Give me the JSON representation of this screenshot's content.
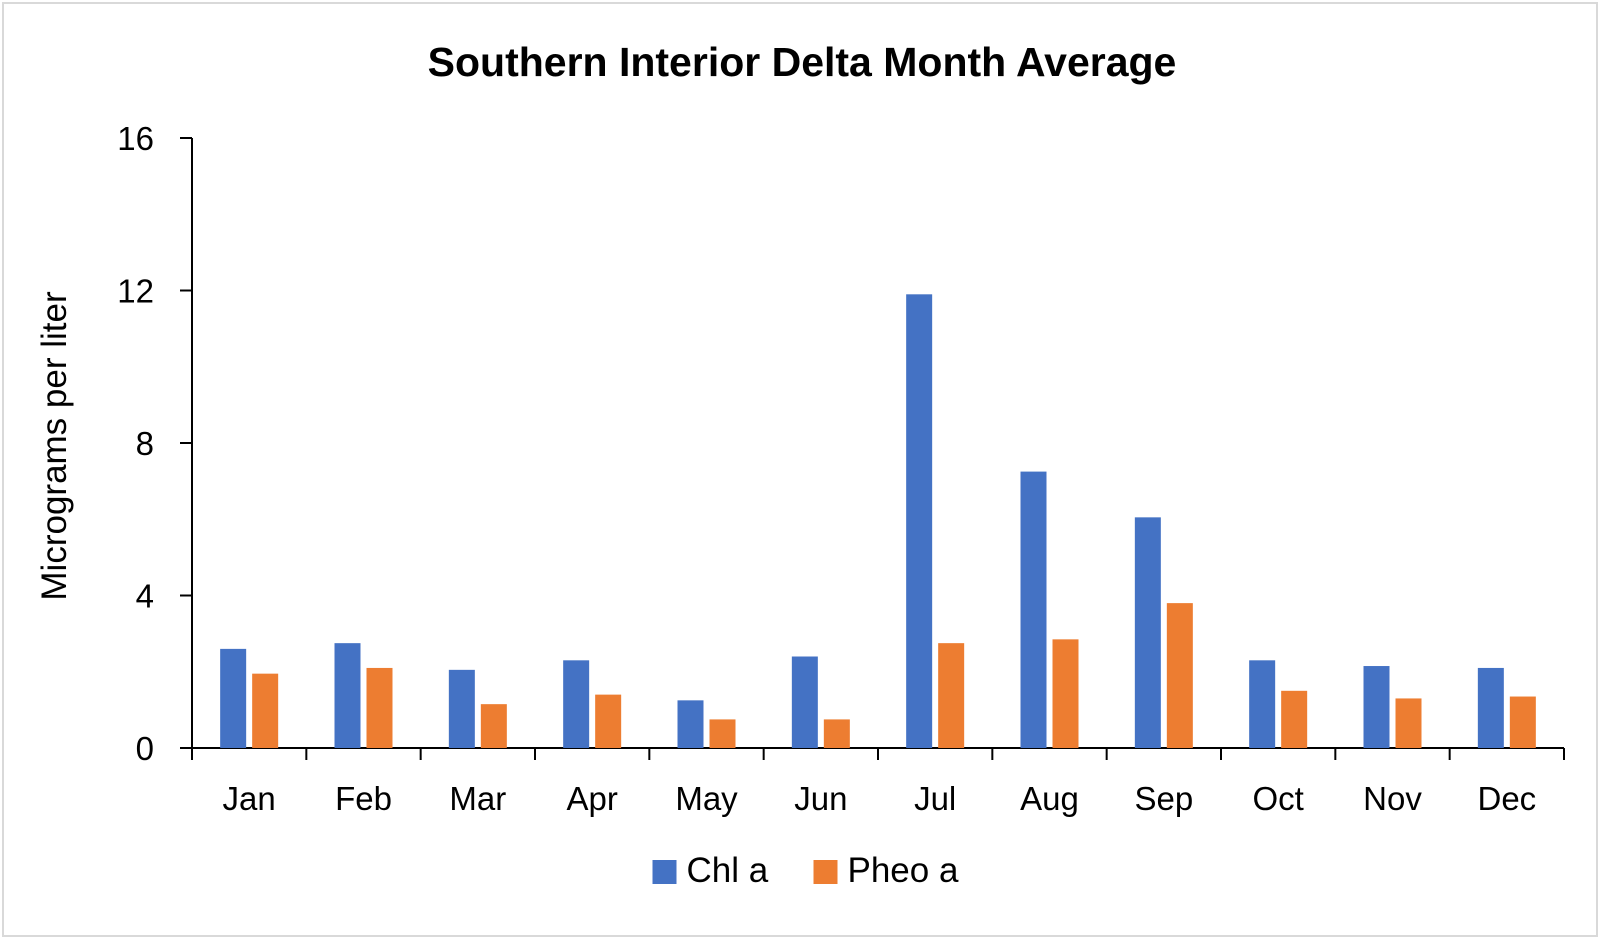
{
  "chart_data": {
    "type": "bar",
    "title": "Southern Interior Delta Month Average",
    "xlabel": "",
    "ylabel": "Micrograms per liter",
    "ylim": [
      0,
      16
    ],
    "yticks": [
      0,
      4,
      8,
      12,
      16
    ],
    "grid": false,
    "legend_position": "bottom",
    "categories": [
      "Jan",
      "Feb",
      "Mar",
      "Apr",
      "May",
      "Jun",
      "Jul",
      "Aug",
      "Sep",
      "Oct",
      "Nov",
      "Dec"
    ],
    "series": [
      {
        "name": "Chl a",
        "color": "#4472C4",
        "values": [
          2.6,
          2.75,
          2.05,
          2.3,
          1.25,
          2.4,
          11.9,
          7.25,
          6.05,
          2.3,
          2.15,
          2.1
        ]
      },
      {
        "name": "Pheo a",
        "color": "#ED7D31",
        "values": [
          1.95,
          2.1,
          1.15,
          1.4,
          0.75,
          0.75,
          2.75,
          2.85,
          3.8,
          1.5,
          1.3,
          1.35
        ]
      }
    ]
  }
}
